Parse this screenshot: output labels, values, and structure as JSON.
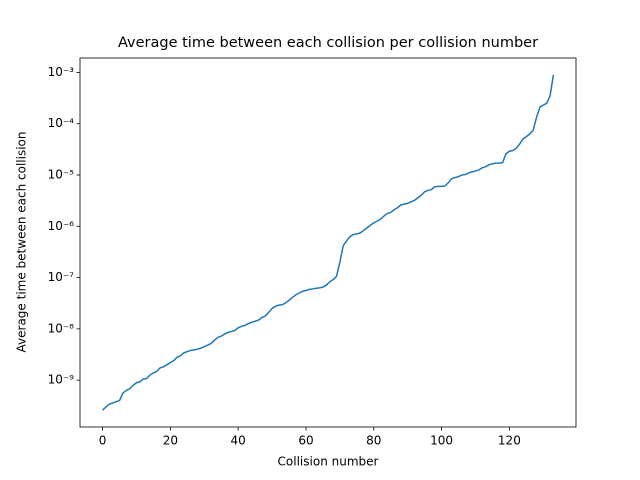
{
  "chart_data": {
    "type": "line",
    "title": "Average time between each collision per collision number",
    "xlabel": "Collision number",
    "ylabel": "Average time between each collision",
    "x": [
      0,
      1,
      2,
      3,
      4,
      5,
      6,
      7,
      8,
      9,
      10,
      11,
      12,
      13,
      14,
      15,
      16,
      17,
      18,
      19,
      20,
      21,
      22,
      23,
      24,
      25,
      26,
      27,
      28,
      29,
      30,
      31,
      32,
      33,
      34,
      35,
      36,
      37,
      38,
      39,
      40,
      41,
      42,
      43,
      44,
      45,
      46,
      47,
      48,
      49,
      50,
      51,
      52,
      53,
      54,
      55,
      56,
      57,
      58,
      59,
      60,
      61,
      62,
      63,
      64,
      65,
      66,
      67,
      68,
      69,
      70,
      71,
      72,
      73,
      74,
      75,
      76,
      77,
      78,
      79,
      80,
      81,
      82,
      83,
      84,
      85,
      86,
      87,
      88,
      89,
      90,
      91,
      92,
      93,
      94,
      95,
      96,
      97,
      98,
      99,
      100,
      101,
      102,
      103,
      104,
      105,
      106,
      107,
      108,
      109,
      110,
      111,
      112,
      113,
      114,
      115,
      116,
      117,
      118,
      119,
      120,
      121,
      122,
      123,
      124,
      125,
      126,
      127,
      128,
      129,
      130,
      131,
      132,
      133
    ],
    "values": [
      2.6e-10,
      3e-10,
      3.4e-10,
      3.6e-10,
      3.8e-10,
      4e-10,
      5.6e-10,
      6.3e-10,
      6.8e-10,
      7.9e-10,
      8.9e-10,
      9.3e-10,
      1.05e-09,
      1.07e-09,
      1.26e-09,
      1.38e-09,
      1.48e-09,
      1.74e-09,
      1.82e-09,
      2e-09,
      2.2e-09,
      2.4e-09,
      2.8e-09,
      3e-09,
      3.4e-09,
      3.6e-09,
      3.8e-09,
      3.9e-09,
      4e-09,
      4.2e-09,
      4.5e-09,
      4.8e-09,
      5.2e-09,
      6e-09,
      6.8e-09,
      7.2e-09,
      7.9e-09,
      8.5e-09,
      8.9e-09,
      9.3e-09,
      1.05e-08,
      1.12e-08,
      1.17e-08,
      1.26e-08,
      1.35e-08,
      1.41e-08,
      1.48e-08,
      1.66e-08,
      1.78e-08,
      2.1e-08,
      2.5e-08,
      2.75e-08,
      2.9e-08,
      2.95e-08,
      3.2e-08,
      3.6e-08,
      4.1e-08,
      4.6e-08,
      5e-08,
      5.4e-08,
      5.6e-08,
      5.9e-08,
      6e-08,
      6.2e-08,
      6.3e-08,
      6.5e-08,
      7.1e-08,
      8.3e-08,
      9.1e-08,
      1.05e-07,
      2e-07,
      4.2e-07,
      5.2e-07,
      6.3e-07,
      6.9e-07,
      7.1e-07,
      7.4e-07,
      8.3e-07,
      9.3e-07,
      1.05e-06,
      1.17e-06,
      1.26e-06,
      1.38e-06,
      1.58e-06,
      1.78e-06,
      1.86e-06,
      2.1e-06,
      2.3e-06,
      2.6e-06,
      2.7e-06,
      2.8e-06,
      3e-06,
      3.2e-06,
      3.6e-06,
      4e-06,
      4.7e-06,
      5e-06,
      5.2e-06,
      5.9e-06,
      6e-06,
      6e-06,
      6.1e-06,
      7.1e-06,
      8.5e-06,
      8.9e-06,
      9.3e-06,
      1e-05,
      1.02e-05,
      1.1e-05,
      1.15e-05,
      1.2e-05,
      1.26e-05,
      1.38e-05,
      1.45e-05,
      1.58e-05,
      1.66e-05,
      1.7e-05,
      1.7e-05,
      1.74e-05,
      2.6e-05,
      2.9e-05,
      3e-05,
      3.3e-05,
      4e-05,
      5e-05,
      5.6e-05,
      6.3e-05,
      7.4e-05,
      0.000132,
      0.00021,
      0.00023,
      0.00025,
      0.00035,
      0.0009
    ],
    "color": "#1f77b4",
    "xlim": [
      -6.65,
      139.65
    ],
    "xticks": [
      0,
      20,
      40,
      60,
      80,
      100,
      120
    ],
    "ylim": [
      1.22e-10,
      0.00191
    ],
    "ylog": true,
    "yticks": [
      {
        "value": 1e-09,
        "label": "10⁻⁹"
      },
      {
        "value": 1e-08,
        "label": "10⁻⁸"
      },
      {
        "value": 1e-07,
        "label": "10⁻⁷"
      },
      {
        "value": 1e-06,
        "label": "10⁻⁶"
      },
      {
        "value": 1e-05,
        "label": "10⁻⁵"
      },
      {
        "value": 0.0001,
        "label": "10⁻⁴"
      },
      {
        "value": 0.001,
        "label": "10⁻³"
      }
    ]
  }
}
